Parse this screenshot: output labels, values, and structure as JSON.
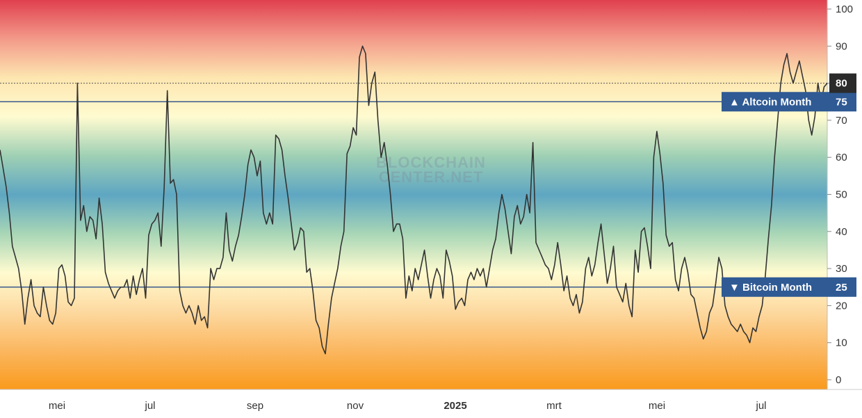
{
  "watermark": {
    "line1": "BLOCKCHAIN",
    "line2": "CENTER.NET"
  },
  "colors": {
    "line": "#333333",
    "threshold_line": "#3a5a8c",
    "tag_bg": "#2f5a94",
    "current_bg": "#2b2b2b",
    "gradient_stops": [
      "#e0404e",
      "#f39a8a",
      "#fde6b0",
      "#fffbd0",
      "#9fd0b4",
      "#5ea6c2",
      "#a8d6b6",
      "#fffbd0",
      "#fdd9a0",
      "#fbb760",
      "#f99a1c"
    ]
  },
  "tags": {
    "altcoin_label": "▲ Altcoin Month",
    "bitcoin_label": "▼ Bitcoin Month"
  },
  "chart_data": {
    "type": "line",
    "title": "",
    "xlabel": "",
    "ylabel": "",
    "ylim": [
      0,
      100
    ],
    "y_ticks": [
      0,
      10,
      20,
      30,
      40,
      50,
      60,
      70,
      80,
      90,
      100
    ],
    "x_ticks": [
      {
        "label": "mei",
        "bold": false
      },
      {
        "label": "jul",
        "bold": false
      },
      {
        "label": "sep",
        "bold": false
      },
      {
        "label": "nov",
        "bold": false
      },
      {
        "label": "2025",
        "bold": true
      },
      {
        "label": "mrt",
        "bold": false
      },
      {
        "label": "mei",
        "bold": false
      },
      {
        "label": "jul",
        "bold": false
      }
    ],
    "x_range": [
      "2024-03-01",
      "2025-08-20"
    ],
    "thresholds": [
      {
        "value": 75,
        "label": "▲ Altcoin Month"
      },
      {
        "value": 25,
        "label": "▼ Bitcoin Month"
      }
    ],
    "current_value": 80,
    "series": [
      {
        "values": [
          62,
          57,
          52,
          45,
          36,
          33,
          30,
          24,
          15,
          22,
          27,
          20,
          18,
          17,
          25,
          20,
          16,
          15,
          18,
          30,
          31,
          28,
          21,
          20,
          22,
          80,
          43,
          47,
          40,
          44,
          43,
          38,
          49,
          42,
          29,
          26,
          24,
          22,
          24,
          25,
          25,
          27,
          22,
          28,
          23,
          27,
          30,
          22,
          39,
          42,
          43,
          45,
          36,
          52,
          78,
          53,
          54,
          50,
          24,
          20,
          18,
          20,
          18,
          15,
          20,
          16,
          17,
          14,
          30,
          27,
          30,
          30,
          33,
          45,
          35,
          32,
          36,
          39,
          44,
          50,
          58,
          62,
          60,
          55,
          59,
          45,
          42,
          45,
          42,
          66,
          65,
          62,
          55,
          49,
          42,
          35,
          37,
          41,
          40,
          29,
          30,
          24,
          16,
          14,
          9,
          7,
          15,
          22,
          26,
          30,
          36,
          40,
          61,
          63,
          68,
          66,
          87,
          90,
          88,
          74,
          80,
          83,
          70,
          60,
          64,
          58,
          50,
          40,
          42,
          42,
          38,
          22,
          28,
          24,
          30,
          27,
          31,
          35,
          28,
          22,
          27,
          30,
          28,
          22,
          35,
          32,
          28,
          19,
          21,
          22,
          20,
          27,
          29,
          27,
          30,
          28,
          30,
          25,
          30,
          35,
          38,
          45,
          50,
          46,
          40,
          34,
          44,
          47,
          42,
          44,
          50,
          45,
          64,
          37,
          35,
          33,
          31,
          30,
          27,
          31,
          37,
          31,
          24,
          28,
          22,
          20,
          23,
          18,
          21,
          30,
          33,
          28,
          31,
          37,
          42,
          34,
          26,
          30,
          36,
          25,
          23,
          21,
          26,
          20,
          17,
          35,
          29,
          40,
          41,
          36,
          30,
          60,
          67,
          61,
          53,
          39,
          36,
          37,
          27,
          24,
          30,
          33,
          29,
          23,
          22,
          18,
          14,
          11,
          13,
          18,
          20,
          26,
          33,
          30,
          20,
          17,
          15,
          14,
          13,
          15,
          13,
          12,
          10,
          14,
          13,
          17,
          20,
          28,
          38,
          47,
          60,
          70,
          80,
          85,
          88,
          83,
          80,
          83,
          86,
          82,
          78,
          70,
          66,
          71,
          80,
          75,
          79,
          80
        ]
      }
    ]
  }
}
